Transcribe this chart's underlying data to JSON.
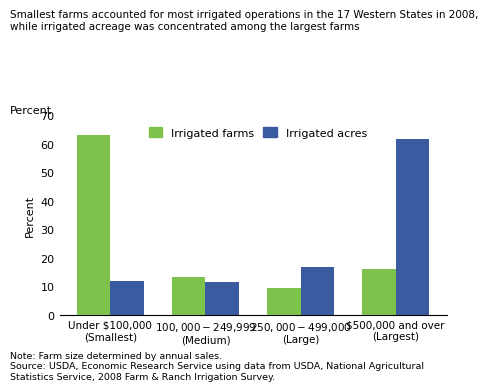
{
  "title_line1": "Smallest farms accounted for most irrigated operations in the 17 Western States in 2008,",
  "title_line2": "while irrigated acreage was concentrated among the largest farms",
  "ylabel": "Percent",
  "categories": [
    "Under $100,000\n(Smallest)",
    "$100,000-$249,999\n(Medium)",
    "$250,000-$499,000\n(Large)",
    "$500,000 and over\n(Largest)"
  ],
  "irrigated_farms": [
    63.0,
    13.5,
    9.5,
    16.0
  ],
  "irrigated_acres": [
    11.8,
    11.5,
    16.8,
    61.5
  ],
  "farms_color": "#7DC34B",
  "acres_color": "#3A5BA0",
  "ylim": [
    0,
    70
  ],
  "yticks": [
    0,
    10,
    20,
    30,
    40,
    50,
    60,
    70
  ],
  "legend_farms": "Irrigated farms",
  "legend_acres": "Irrigated acres",
  "note_line1": "Note: Farm size determined by annual sales.",
  "note_line2": "Source: USDA, Economic Research Service using data from USDA, National Agricultural",
  "note_line3": "Statistics Service, 2008 Farm & Ranch Irrigation Survey."
}
